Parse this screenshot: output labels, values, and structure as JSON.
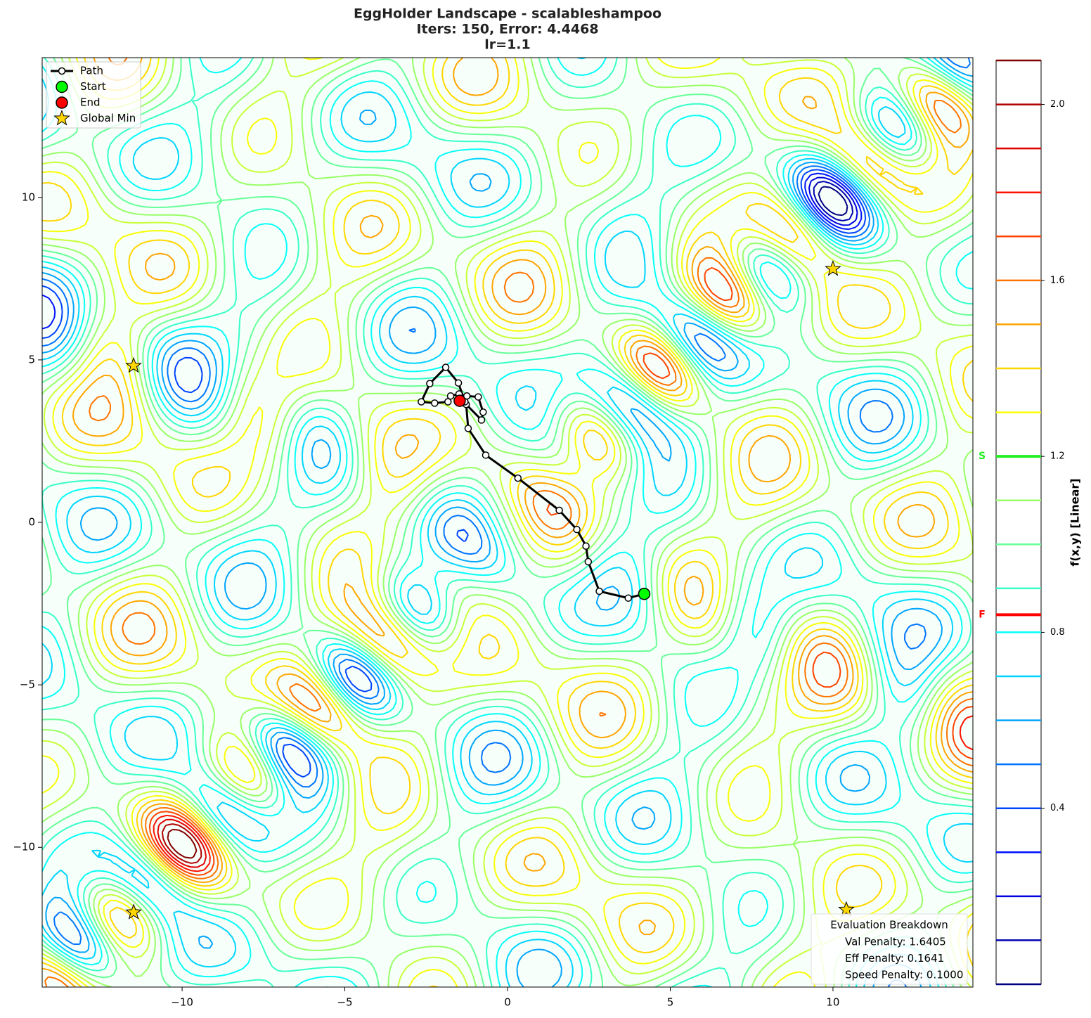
{
  "chart_data": {
    "type": "contour",
    "title_lines": [
      "EggHolder Landscape - scalableshampoo",
      "Iters: 150, Error: 4.4468",
      "lr=1.1"
    ],
    "xlim": [
      -14.3,
      14.3
    ],
    "ylim": [
      -14.3,
      14.3
    ],
    "xticks": [
      {
        "value": -10,
        "label": "−10"
      },
      {
        "value": -5,
        "label": "−5"
      },
      0,
      5,
      10
    ],
    "yticks": [
      {
        "value": -10,
        "label": "−10"
      },
      {
        "value": -5,
        "label": "−5"
      },
      0,
      5,
      10
    ],
    "legend": "upper left",
    "path": {
      "name": "Path",
      "color": "#000000",
      "x": [
        4.2,
        3.71,
        2.82,
        2.48,
        2.41,
        2.13,
        1.59,
        0.32,
        -0.67,
        -1.21,
        -1.27,
        -0.8,
        -0.75,
        -0.9,
        -1.25,
        -1.49,
        -1.75,
        -1.83,
        -2.24,
        -2.65,
        -2.39,
        -1.9,
        -1.51,
        -1.31,
        -1.47
      ],
      "y": [
        -2.2,
        -2.33,
        -2.12,
        -1.21,
        -0.73,
        -0.22,
        0.37,
        1.36,
        2.07,
        2.89,
        3.63,
        3.15,
        3.39,
        3.86,
        3.89,
        3.95,
        3.89,
        3.71,
        3.67,
        3.71,
        4.27,
        4.77,
        4.29,
        3.71,
        3.74
      ]
    },
    "start": {
      "name": "Start",
      "x": 4.2,
      "y": -2.2,
      "color": "#00ff00"
    },
    "end": {
      "name": "End",
      "x": -1.47,
      "y": 3.74,
      "color": "#ff0000"
    },
    "global_min": {
      "name": "Global Min",
      "color": "#ffd700",
      "x": [
        -11.49,
        10.0,
        -11.49,
        10.41
      ],
      "y": [
        4.82,
        7.8,
        -12.0,
        -11.92
      ]
    },
    "colorbar": {
      "label": "f(x,y) [Linear]",
      "clim": [
        0,
        2.1
      ],
      "levels": [
        0,
        0.1,
        0.2,
        0.3,
        0.4,
        0.5,
        0.6,
        0.7,
        0.8,
        0.9,
        1.0,
        1.1,
        1.2,
        1.3,
        1.4,
        1.5,
        1.6,
        1.7,
        1.8,
        1.9,
        2.0,
        2.1
      ],
      "ticks": [
        0.4,
        0.8,
        1.2,
        1.6,
        {
          "value": 2.0,
          "label": "2.0"
        }
      ],
      "markers": [
        {
          "label": "S",
          "value": 1.2,
          "color": "#22ee22"
        },
        {
          "label": "F",
          "value": 0.84,
          "color": "#ff0000"
        }
      ]
    },
    "annotation": {
      "title": "Evaluation Breakdown",
      "lines": [
        "Val Penalty: 1.6405",
        "Eff Penalty: 0.1641",
        "Speed Penalty: 0.1000"
      ]
    }
  }
}
